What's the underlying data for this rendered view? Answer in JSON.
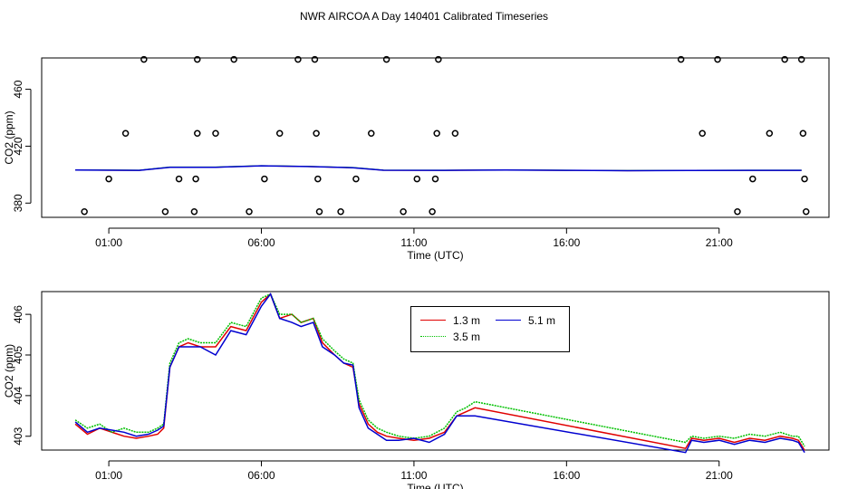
{
  "title": "NWR AIRCOA A  Day 140401  Calibrated Timeseries",
  "colors": {
    "series_1_3": "#e00000",
    "series_3_5": "#00c000",
    "series_5_1": "#0000d0",
    "axis": "#000000",
    "points": "#000000"
  },
  "chart_data": [
    {
      "type": "scatter",
      "xlabel": "Time (UTC)",
      "ylabel": "CO2 (ppm)",
      "xlim": [
        -1.2,
        24.6
      ],
      "ylim": [
        370,
        482
      ],
      "x_ticks": [
        1,
        6,
        11,
        16,
        21
      ],
      "x_tick_labels": [
        "01:00",
        "06:00",
        "11:00",
        "16:00",
        "21:00"
      ],
      "y_ticks": [
        380,
        420,
        460
      ],
      "y_tick_labels": [
        "380",
        "420",
        "460"
      ],
      "points": [
        {
          "x": 0.2,
          "y": 374
        },
        {
          "x": 1.0,
          "y": 397
        },
        {
          "x": 1.55,
          "y": 429
        },
        {
          "x": 2.15,
          "y": 481
        },
        {
          "x": 2.85,
          "y": 374
        },
        {
          "x": 3.3,
          "y": 397
        },
        {
          "x": 3.8,
          "y": 374
        },
        {
          "x": 3.85,
          "y": 397
        },
        {
          "x": 3.9,
          "y": 429
        },
        {
          "x": 3.9,
          "y": 481
        },
        {
          "x": 4.5,
          "y": 429
        },
        {
          "x": 5.1,
          "y": 481
        },
        {
          "x": 5.6,
          "y": 374
        },
        {
          "x": 6.1,
          "y": 397
        },
        {
          "x": 6.6,
          "y": 429
        },
        {
          "x": 7.2,
          "y": 481
        },
        {
          "x": 7.75,
          "y": 481
        },
        {
          "x": 7.8,
          "y": 429
        },
        {
          "x": 7.85,
          "y": 397
        },
        {
          "x": 7.9,
          "y": 374
        },
        {
          "x": 8.6,
          "y": 374
        },
        {
          "x": 9.1,
          "y": 397
        },
        {
          "x": 9.6,
          "y": 429
        },
        {
          "x": 10.1,
          "y": 481
        },
        {
          "x": 10.65,
          "y": 374
        },
        {
          "x": 11.1,
          "y": 397
        },
        {
          "x": 11.6,
          "y": 374
        },
        {
          "x": 11.7,
          "y": 397
        },
        {
          "x": 11.75,
          "y": 429
        },
        {
          "x": 11.8,
          "y": 481
        },
        {
          "x": 12.35,
          "y": 429
        },
        {
          "x": 19.75,
          "y": 481
        },
        {
          "x": 20.45,
          "y": 429
        },
        {
          "x": 20.95,
          "y": 481
        },
        {
          "x": 21.6,
          "y": 374
        },
        {
          "x": 22.1,
          "y": 397
        },
        {
          "x": 22.65,
          "y": 429
        },
        {
          "x": 23.15,
          "y": 481
        },
        {
          "x": 23.7,
          "y": 481
        },
        {
          "x": 23.75,
          "y": 429
        },
        {
          "x": 23.8,
          "y": 397
        },
        {
          "x": 23.85,
          "y": 374
        }
      ],
      "series": [
        {
          "x": [
            -0.1,
            2.0,
            3.0,
            4.5,
            6.0,
            7.5,
            9.0,
            10.0,
            12.0,
            14.0,
            16.0,
            18.0,
            20.0,
            22.0,
            23.7
          ],
          "y": [
            403.2,
            403.0,
            405.2,
            405.2,
            406.2,
            405.7,
            404.9,
            403.1,
            403.0,
            403.2,
            403.0,
            402.8,
            402.9,
            403.0,
            403.0
          ]
        }
      ]
    },
    {
      "type": "line",
      "xlabel": "Time (UTC)",
      "ylabel": "CO2 (ppm)",
      "xlim": [
        -1.2,
        24.6
      ],
      "ylim": [
        402.66,
        406.56
      ],
      "x_ticks": [
        1,
        6,
        11,
        16,
        21
      ],
      "x_tick_labels": [
        "01:00",
        "06:00",
        "11:00",
        "16:00",
        "21:00"
      ],
      "y_ticks": [
        403,
        404,
        405,
        406
      ],
      "y_tick_labels": [
        "403",
        "404",
        "405",
        "406"
      ],
      "legend": {
        "placement": "top-center-right",
        "entries": [
          "1.3 m",
          "3.5 m",
          "5.1 m"
        ]
      },
      "x": [
        -0.1,
        0.3,
        0.7,
        1.1,
        1.5,
        1.9,
        2.3,
        2.6,
        2.8,
        3.0,
        3.3,
        3.6,
        4.0,
        4.5,
        5.0,
        5.5,
        6.0,
        6.3,
        6.6,
        7.0,
        7.3,
        7.7,
        8.0,
        8.4,
        8.7,
        9.0,
        9.2,
        9.5,
        9.8,
        10.1,
        10.5,
        11.0,
        11.5,
        12.0,
        12.4,
        12.7,
        13.0,
        19.9,
        20.1,
        20.5,
        21.0,
        21.5,
        22.0,
        22.5,
        23.0,
        23.4,
        23.6,
        23.8
      ],
      "series": [
        {
          "name": "1.3 m",
          "color": "#e00000",
          "y": [
            403.3,
            403.05,
            403.2,
            403.1,
            403.0,
            402.95,
            403.0,
            403.05,
            403.2,
            404.7,
            405.2,
            405.3,
            405.2,
            405.2,
            405.7,
            405.6,
            406.3,
            406.5,
            405.9,
            406.0,
            405.8,
            405.9,
            405.3,
            405.0,
            404.8,
            404.7,
            403.8,
            403.3,
            403.1,
            403.0,
            402.95,
            402.9,
            402.95,
            403.1,
            403.5,
            403.6,
            403.7,
            402.7,
            402.95,
            402.9,
            402.95,
            402.85,
            402.95,
            402.9,
            403.0,
            402.95,
            402.9,
            402.65
          ]
        },
        {
          "name": "3.5 m",
          "color": "#00c000",
          "y": [
            403.4,
            403.2,
            403.3,
            403.1,
            403.2,
            403.1,
            403.1,
            403.2,
            403.3,
            404.8,
            405.3,
            405.4,
            405.3,
            405.3,
            405.8,
            405.7,
            406.4,
            406.5,
            406.0,
            406.0,
            405.8,
            405.9,
            405.4,
            405.1,
            404.9,
            404.8,
            403.9,
            403.4,
            403.2,
            403.1,
            403.0,
            402.95,
            403.0,
            403.2,
            403.6,
            403.7,
            403.85,
            402.85,
            403.0,
            402.95,
            403.0,
            402.95,
            403.05,
            403.0,
            403.1,
            403.0,
            403.0,
            402.75
          ]
        },
        {
          "name": "5.1 m",
          "color": "#0000d0",
          "y": [
            403.35,
            403.1,
            403.2,
            403.15,
            403.1,
            403.0,
            403.05,
            403.15,
            403.25,
            404.7,
            405.2,
            405.2,
            405.2,
            405.0,
            405.6,
            405.5,
            406.2,
            406.5,
            405.9,
            405.8,
            405.7,
            405.8,
            405.2,
            405.0,
            404.8,
            404.75,
            403.7,
            403.2,
            403.05,
            402.9,
            402.9,
            402.95,
            402.85,
            403.05,
            403.5,
            403.5,
            403.5,
            402.6,
            402.9,
            402.85,
            402.9,
            402.8,
            402.9,
            402.85,
            402.95,
            402.9,
            402.85,
            402.6
          ]
        }
      ]
    }
  ]
}
